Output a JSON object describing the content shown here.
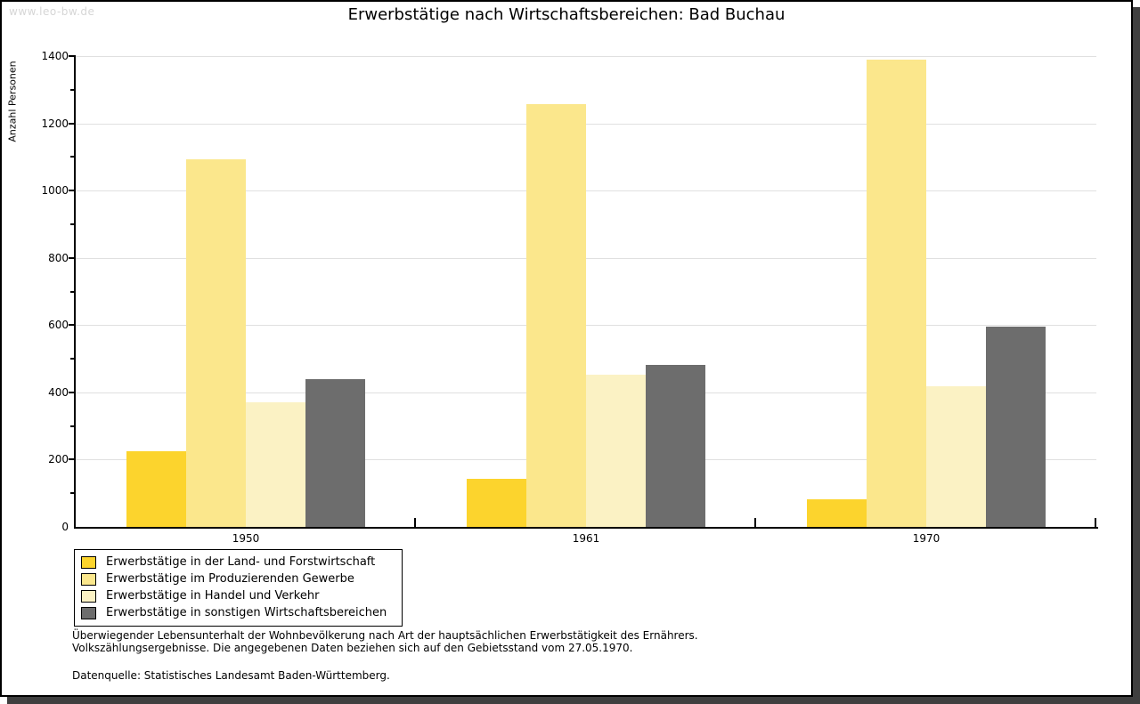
{
  "watermark": "www.leo-bw.de",
  "title": "Erwerbstätige nach Wirtschaftsbereichen: Bad Buchau",
  "chart_data": {
    "type": "bar",
    "title": "Erwerbstätige nach Wirtschaftsbereichen: Bad Buchau",
    "categories": [
      "1950",
      "1961",
      "1970"
    ],
    "series": [
      {
        "name": "Erwerbstätige in der Land- und Forstwirtschaft",
        "color": "#FCD42D",
        "values": [
          225,
          143,
          83
        ]
      },
      {
        "name": "Erwerbstätige im Produzierenden Gewerbe",
        "color": "#FBE78C",
        "values": [
          1092,
          1258,
          1389
        ]
      },
      {
        "name": "Erwerbstätige in Handel und Verkehr",
        "color": "#FBF2C4",
        "values": [
          371,
          453,
          418
        ]
      },
      {
        "name": "Erwerbstätige in sonstigen Wirtschaftsbereichen",
        "color": "#6D6D6D",
        "values": [
          439,
          482,
          596
        ]
      }
    ],
    "xlabel": "",
    "ylabel": "Anzahl Personen",
    "ylim": [
      0,
      1400
    ],
    "ytick_step": 200,
    "ytick_minor_step": 100,
    "grid": true,
    "legend_position": "bottom-left",
    "colors": {
      "gridline": "#e0e0e0",
      "axis": "#000000"
    }
  },
  "footnotes": {
    "line1": "Überwiegender Lebensunterhalt der Wohnbevölkerung nach Art der hauptsächlichen Erwerbstätigkeit des Ernährers.",
    "line2": "Volkszählungsergebnisse. Die angegebenen Daten beziehen sich auf den Gebietsstand vom 27.05.1970.",
    "source": "Datenquelle: Statistisches Landesamt Baden-Württemberg."
  }
}
